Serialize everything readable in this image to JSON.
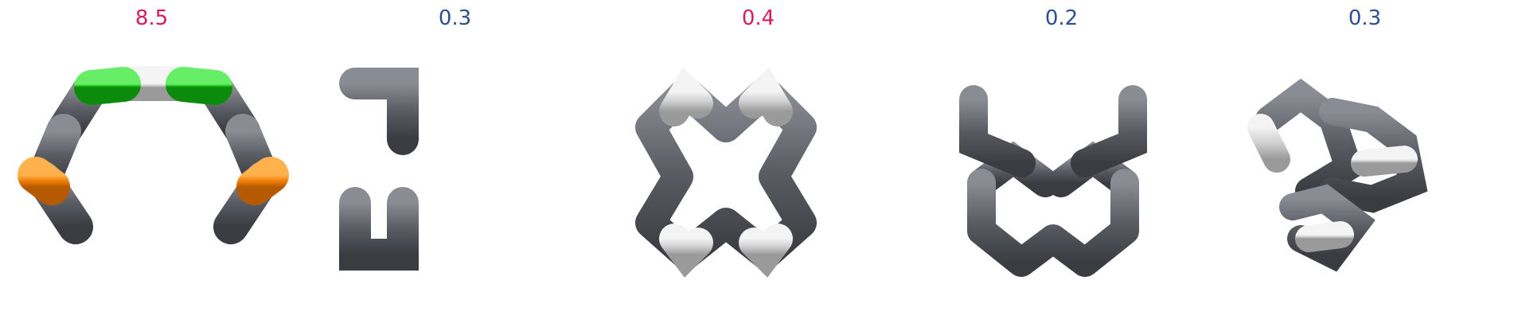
{
  "colors": {
    "accent_red": "#d81b60",
    "accent_blue": "#2c4f8f",
    "green": "#1fc81f",
    "orange": "#f07f0b",
    "gray": "#5a5c63",
    "white": "#cfcfcf"
  },
  "panels": [
    {
      "label": "8.5",
      "color": "accent_red"
    },
    {
      "label": "0.3",
      "color": "accent_blue"
    },
    {
      "label": "0.4",
      "color": "accent_red"
    },
    {
      "label": "0.2",
      "color": "accent_blue"
    },
    {
      "label": "0.3",
      "color": "accent_blue"
    }
  ]
}
